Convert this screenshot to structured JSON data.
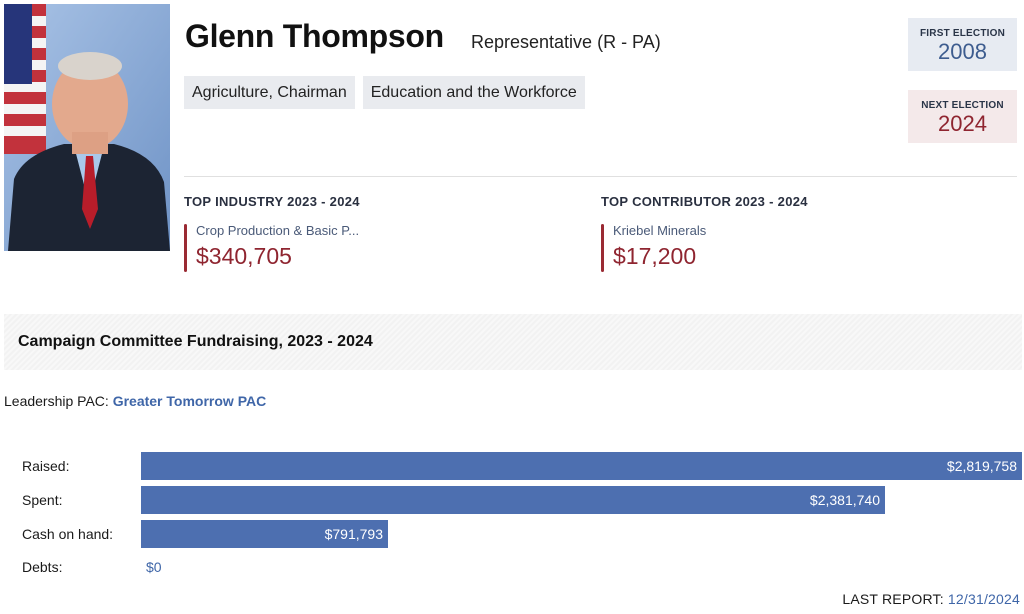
{
  "member": {
    "name": "Glenn Thompson",
    "role": "Representative (R - PA)",
    "committees": [
      "Agriculture, Chairman",
      "Education and the Workforce"
    ]
  },
  "elections": {
    "first_label": "FIRST ELECTION",
    "first_year": "2008",
    "next_label": "NEXT ELECTION",
    "next_year": "2024"
  },
  "top_industry": {
    "title": "TOP INDUSTRY 2023 - 2024",
    "name": "Crop Production & Basic P...",
    "amount": "$340,705"
  },
  "top_contributor": {
    "title": "TOP CONTRIBUTOR 2023 - 2024",
    "name": "Kriebel Minerals",
    "amount": "$17,200"
  },
  "fundraising": {
    "title": "Campaign Committee Fundraising, 2023 - 2024",
    "leadership_pac_label": "Leadership PAC:",
    "leadership_pac_name": "Greater Tomorrow PAC",
    "rows": [
      {
        "label": "Raised:",
        "value": 2819758,
        "display": "$2,819,758"
      },
      {
        "label": "Spent:",
        "value": 2381740,
        "display": "$2,381,740"
      },
      {
        "label": "Cash on hand:",
        "value": 791793,
        "display": "$791,793"
      },
      {
        "label": "Debts:",
        "value": 0,
        "display": "$0"
      }
    ],
    "last_report_label": "LAST REPORT:",
    "last_report_date": "12/31/2024"
  },
  "colors": {
    "bar": "#4d6fb0",
    "accent_red": "#8f2530",
    "accent_blue": "#3f66a8"
  }
}
